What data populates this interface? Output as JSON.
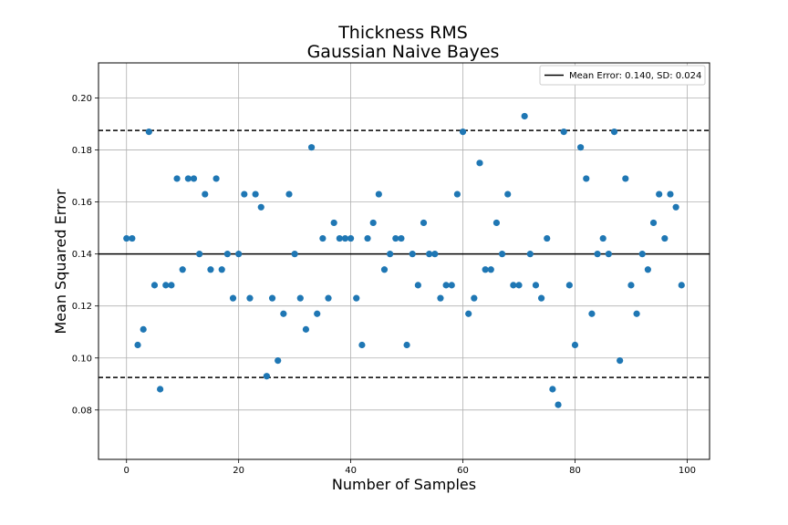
{
  "chart_data": {
    "type": "scatter",
    "title": "Thickness RMS",
    "subtitle": "Gaussian Naive Bayes",
    "xlabel": "Number of Samples",
    "ylabel": "Mean Squared Error",
    "xlim": [
      -5,
      104
    ],
    "ylim": [
      0.061,
      0.2135
    ],
    "xticks": [
      0,
      20,
      40,
      60,
      80,
      100
    ],
    "yticks": [
      0.08,
      0.1,
      0.12,
      0.14,
      0.16,
      0.18,
      0.2
    ],
    "xtick_labels": [
      "0",
      "20",
      "40",
      "60",
      "80",
      "100"
    ],
    "ytick_labels": [
      "0.08",
      "0.10",
      "0.12",
      "0.14",
      "0.16",
      "0.18",
      "0.20"
    ],
    "grid": true,
    "legend_position": "top-right",
    "legend_entries": [
      "Mean Error: 0.140, SD: 0.024"
    ],
    "point_color": "#1f77b4",
    "mean": 0.14,
    "sd_lines": [
      0.0925,
      0.1875
    ],
    "x": [
      0,
      1,
      2,
      3,
      4,
      5,
      6,
      7,
      8,
      9,
      10,
      11,
      12,
      13,
      14,
      15,
      16,
      17,
      18,
      19,
      20,
      21,
      22,
      23,
      24,
      25,
      26,
      27,
      28,
      29,
      30,
      31,
      32,
      33,
      34,
      35,
      36,
      37,
      38,
      39,
      40,
      41,
      42,
      43,
      44,
      45,
      46,
      47,
      48,
      49,
      50,
      51,
      52,
      53,
      54,
      55,
      56,
      57,
      58,
      59,
      60,
      61,
      62,
      63,
      64,
      65,
      66,
      67,
      68,
      69,
      70,
      71,
      72,
      73,
      74,
      75,
      76,
      77,
      78,
      79,
      80,
      81,
      82,
      83,
      84,
      85,
      86,
      87,
      88,
      89,
      90,
      91,
      92,
      93,
      94,
      95,
      96,
      97,
      98,
      99
    ],
    "y": [
      0.146,
      0.146,
      0.105,
      0.111,
      0.187,
      0.128,
      0.088,
      0.128,
      0.128,
      0.169,
      0.134,
      0.169,
      0.169,
      0.14,
      0.163,
      0.134,
      0.169,
      0.134,
      0.14,
      0.123,
      0.14,
      0.163,
      0.123,
      0.163,
      0.158,
      0.093,
      0.123,
      0.099,
      0.117,
      0.163,
      0.14,
      0.123,
      0.111,
      0.181,
      0.117,
      0.146,
      0.123,
      0.152,
      0.146,
      0.146,
      0.146,
      0.123,
      0.105,
      0.146,
      0.152,
      0.163,
      0.134,
      0.14,
      0.146,
      0.146,
      0.105,
      0.14,
      0.128,
      0.152,
      0.14,
      0.14,
      0.123,
      0.128,
      0.128,
      0.163,
      0.187,
      0.117,
      0.123,
      0.175,
      0.134,
      0.134,
      0.152,
      0.14,
      0.163,
      0.128,
      0.128,
      0.193,
      0.14,
      0.128,
      0.123,
      0.146,
      0.088,
      0.082,
      0.187,
      0.128,
      0.105,
      0.181,
      0.169,
      0.117,
      0.14,
      0.146,
      0.14,
      0.187,
      0.099,
      0.169,
      0.128,
      0.117,
      0.14,
      0.134,
      0.152,
      0.163,
      0.146,
      0.163,
      0.158,
      0.128
    ]
  }
}
